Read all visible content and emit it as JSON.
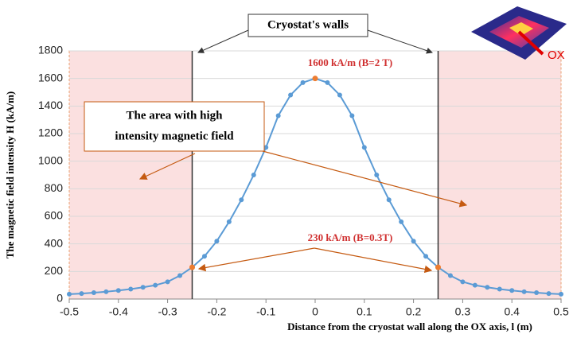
{
  "chart_data": {
    "type": "line",
    "y_label": "The magnetic field intensity H (kA/m)",
    "x_label": "Distance from the cryostat wall along the OX axis, l (m)",
    "x": [
      -0.5,
      -0.475,
      -0.45,
      -0.425,
      -0.4,
      -0.375,
      -0.35,
      -0.325,
      -0.3,
      -0.275,
      -0.25,
      -0.225,
      -0.2,
      -0.175,
      -0.15,
      -0.125,
      -0.1,
      -0.075,
      -0.05,
      -0.025,
      0,
      0.025,
      0.05,
      0.075,
      0.1,
      0.125,
      0.15,
      0.175,
      0.2,
      0.225,
      0.25,
      0.275,
      0.3,
      0.325,
      0.35,
      0.375,
      0.4,
      0.425,
      0.45,
      0.475,
      0.5
    ],
    "series": [
      {
        "color": "#5b9bd5",
        "values": [
          35,
          40,
          46,
          53,
          62,
          72,
          85,
          100,
          125,
          170,
          230,
          310,
          420,
          560,
          720,
          900,
          1100,
          1330,
          1480,
          1570,
          1600,
          1570,
          1480,
          1330,
          1100,
          900,
          720,
          560,
          420,
          310,
          230,
          170,
          125,
          100,
          85,
          72,
          62,
          53,
          46,
          40,
          35
        ]
      },
      {
        "color": "#ed7d31",
        "x": [
          -0.25,
          0,
          0.25
        ],
        "values": [
          230,
          1600,
          230
        ]
      }
    ],
    "xlim": [
      -0.5,
      0.5
    ],
    "xticks": [
      -0.5,
      -0.4,
      -0.3,
      -0.2,
      -0.1,
      0,
      0.1,
      0.2,
      0.3,
      0.4,
      0.5
    ],
    "ylim": [
      0,
      1800
    ],
    "yticks": [
      0,
      200,
      400,
      600,
      800,
      1000,
      1200,
      1400,
      1600,
      1800
    ],
    "shaded_regions": [
      [
        -0.5,
        -0.25
      ],
      [
        0.25,
        0.5
      ]
    ],
    "region_color": "#fbe0e0",
    "walls": [
      -0.25,
      0.25
    ],
    "annotations": {
      "walls_label": "Cryostat's walls",
      "peak_label": "1600 kA/m (B=2 T)",
      "edge_label": "230 kA/m (B=0.3T)",
      "area_label": [
        "The area with high",
        "intensity magnetic field"
      ],
      "inset_label": "OX"
    }
  }
}
